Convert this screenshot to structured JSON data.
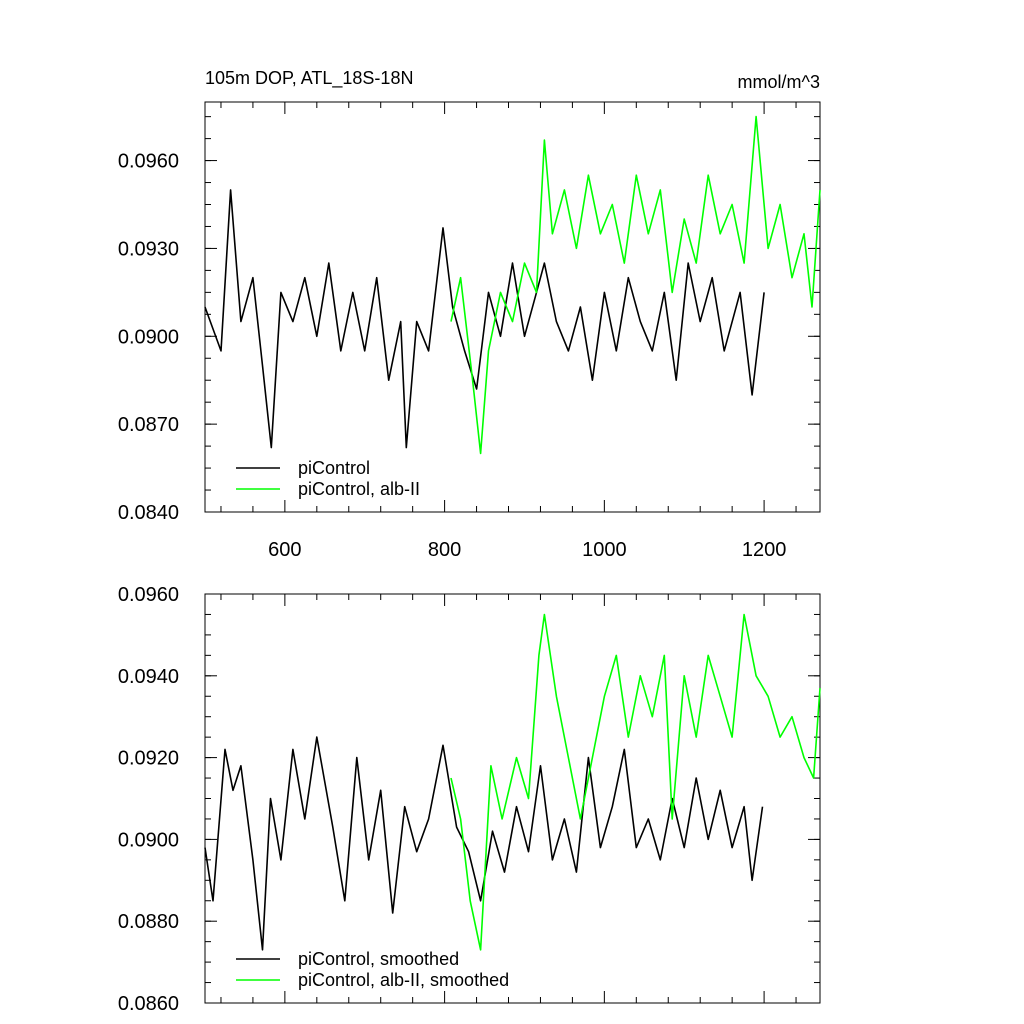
{
  "chart_data": [
    {
      "type": "line",
      "title": "105m DOP, ATL_18S-18N",
      "units": "mmol/m^3",
      "xlim": [
        500,
        1270
      ],
      "ylim": [
        0.084,
        0.098
      ],
      "xticks": [
        600,
        800,
        1000,
        1200
      ],
      "xtick_labels": [
        "600",
        "800",
        "1000",
        "1200"
      ],
      "yticks": [
        0.084,
        0.087,
        0.09,
        0.093,
        0.096
      ],
      "ytick_labels": [
        "0.0840",
        "0.0870",
        "0.0900",
        "0.0930",
        "0.0960"
      ],
      "legend_position": "bottom-left",
      "series": [
        {
          "name": "piControl",
          "color": "#000000",
          "x": [
            500,
            520,
            532,
            545,
            560,
            572,
            583,
            595,
            610,
            625,
            640,
            655,
            670,
            685,
            700,
            715,
            730,
            745,
            752,
            765,
            780,
            798,
            810,
            825,
            840,
            855,
            870,
            885,
            900,
            915,
            925,
            940,
            955,
            970,
            985,
            1000,
            1015,
            1030,
            1045,
            1060,
            1075,
            1090,
            1105,
            1120,
            1135,
            1150,
            1170,
            1185,
            1200
          ],
          "y": [
            0.091,
            0.0895,
            0.095,
            0.0905,
            0.092,
            0.089,
            0.0862,
            0.0915,
            0.0905,
            0.092,
            0.09,
            0.0925,
            0.0895,
            0.0915,
            0.0895,
            0.092,
            0.0885,
            0.0905,
            0.0862,
            0.0905,
            0.0895,
            0.0937,
            0.091,
            0.0895,
            0.0882,
            0.0915,
            0.09,
            0.0925,
            0.09,
            0.0915,
            0.0925,
            0.0905,
            0.0895,
            0.091,
            0.0885,
            0.0915,
            0.0895,
            0.092,
            0.0905,
            0.0895,
            0.0915,
            0.0885,
            0.0925,
            0.0905,
            0.092,
            0.0895,
            0.0915,
            0.088,
            0.0915
          ]
        },
        {
          "name": "piControl, alb-II",
          "color": "#00ff00",
          "x": [
            808,
            820,
            835,
            845,
            855,
            870,
            885,
            900,
            915,
            925,
            935,
            950,
            965,
            980,
            995,
            1010,
            1025,
            1040,
            1055,
            1070,
            1085,
            1100,
            1115,
            1130,
            1145,
            1160,
            1175,
            1190,
            1205,
            1220,
            1235,
            1250,
            1260,
            1270
          ],
          "y": [
            0.0905,
            0.092,
            0.0885,
            0.086,
            0.0895,
            0.0915,
            0.0905,
            0.0925,
            0.0915,
            0.0967,
            0.0935,
            0.095,
            0.093,
            0.0955,
            0.0935,
            0.0945,
            0.0925,
            0.0955,
            0.0935,
            0.095,
            0.0915,
            0.094,
            0.0925,
            0.0955,
            0.0935,
            0.0945,
            0.0925,
            0.0975,
            0.093,
            0.0945,
            0.092,
            0.0935,
            0.091,
            0.095
          ]
        }
      ]
    },
    {
      "type": "line",
      "xlim": [
        500,
        1270
      ],
      "ylim": [
        0.086,
        0.096
      ],
      "xticks": [
        600,
        800,
        1000,
        1200
      ],
      "yticks": [
        0.086,
        0.088,
        0.09,
        0.092,
        0.094,
        0.096
      ],
      "ytick_labels": [
        "0.0860",
        "0.0880",
        "0.0900",
        "0.0920",
        "0.0940",
        "0.0960"
      ],
      "legend_position": "bottom-left",
      "series": [
        {
          "name": "piControl, smoothed",
          "color": "#000000",
          "x": [
            500,
            510,
            525,
            535,
            545,
            560,
            572,
            582,
            595,
            610,
            625,
            640,
            660,
            675,
            690,
            705,
            720,
            735,
            750,
            765,
            780,
            798,
            815,
            830,
            845,
            860,
            875,
            890,
            905,
            920,
            935,
            950,
            965,
            980,
            995,
            1010,
            1025,
            1040,
            1055,
            1070,
            1085,
            1100,
            1115,
            1130,
            1145,
            1160,
            1175,
            1185,
            1198
          ],
          "y": [
            0.0898,
            0.0885,
            0.0922,
            0.0912,
            0.0918,
            0.0895,
            0.0873,
            0.091,
            0.0895,
            0.0922,
            0.0905,
            0.0925,
            0.0903,
            0.0885,
            0.092,
            0.0895,
            0.0912,
            0.0882,
            0.0908,
            0.0897,
            0.0905,
            0.0923,
            0.0903,
            0.0897,
            0.0885,
            0.0902,
            0.0892,
            0.0908,
            0.0897,
            0.0918,
            0.0895,
            0.0905,
            0.0892,
            0.092,
            0.0898,
            0.0908,
            0.0922,
            0.0898,
            0.0905,
            0.0895,
            0.091,
            0.0898,
            0.0915,
            0.09,
            0.0912,
            0.0898,
            0.0908,
            0.089,
            0.0908
          ]
        },
        {
          "name": "piControl, alb-II, smoothed",
          "color": "#00ff00",
          "x": [
            808,
            820,
            832,
            845,
            858,
            872,
            890,
            905,
            918,
            925,
            940,
            955,
            970,
            985,
            1000,
            1015,
            1030,
            1045,
            1060,
            1075,
            1085,
            1100,
            1115,
            1130,
            1145,
            1160,
            1175,
            1190,
            1205,
            1220,
            1235,
            1250,
            1262,
            1270
          ],
          "y": [
            0.0915,
            0.0905,
            0.0885,
            0.0873,
            0.0918,
            0.0905,
            0.092,
            0.091,
            0.0945,
            0.0955,
            0.0935,
            0.092,
            0.0905,
            0.092,
            0.0935,
            0.0945,
            0.0925,
            0.094,
            0.093,
            0.0945,
            0.0905,
            0.094,
            0.0925,
            0.0945,
            0.0935,
            0.0925,
            0.0955,
            0.094,
            0.0935,
            0.0925,
            0.093,
            0.092,
            0.0915,
            0.0937
          ]
        }
      ]
    }
  ]
}
